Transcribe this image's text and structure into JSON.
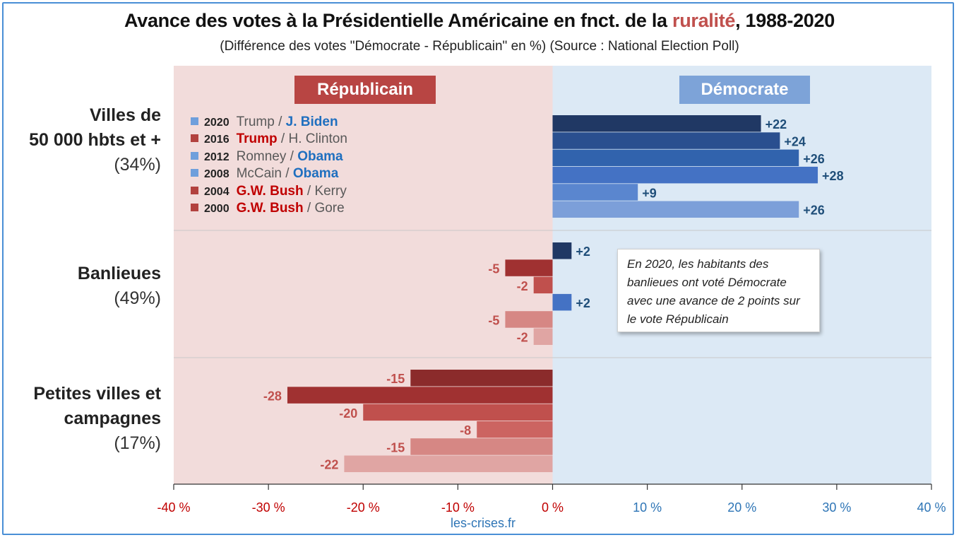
{
  "title": {
    "before": "Avance des votes à la Présidentielle Américaine en fnct. de la ",
    "accent": "ruralité",
    "after": ", 1988-2020"
  },
  "subtitle": "(Différence des votes \"Démocrate - Républicain\" en %) (Source : National Election Poll)",
  "badges": {
    "republican": "Républicain",
    "democrat": "Démocrate"
  },
  "credit": "les-crises.fr",
  "callout": "En 2020, les habitants des banlieues ont voté Démocrate avec une avance de 2 points sur le vote Républicain",
  "legend": [
    {
      "year": "2020",
      "rep": "Trump",
      "dem": "J. Biden",
      "winner": "dem",
      "color": "#6f9fdc"
    },
    {
      "year": "2016",
      "rep": "Trump",
      "dem": "H. Clinton",
      "winner": "rep",
      "color": "#b2423f"
    },
    {
      "year": "2012",
      "rep": "Romney",
      "dem": "Obama",
      "winner": "dem",
      "color": "#6f9fdc"
    },
    {
      "year": "2008",
      "rep": "McCain",
      "dem": "Obama",
      "winner": "dem",
      "color": "#6f9fdc"
    },
    {
      "year": "2004",
      "rep": "G.W. Bush",
      "dem": "Kerry",
      "winner": "rep",
      "color": "#b2423f"
    },
    {
      "year": "2000",
      "rep": "G.W. Bush",
      "dem": "Gore",
      "winner": "rep",
      "color": "#b2423f"
    }
  ],
  "colors": {
    "rep_zone": "#f2dcdb",
    "dem_zone": "#dce9f5",
    "rep_label": "#c0504d",
    "dem_label": "#1f4e79",
    "dem_shades": [
      "#203864",
      "#2a4f8f",
      "#3163ad",
      "#4472c4",
      "#5a86cf",
      "#7c9fd9"
    ],
    "rep_shades": [
      "#8b2b2b",
      "#a03131",
      "#c0504d",
      "#cc6461",
      "#d68784",
      "#e0a5a3"
    ]
  },
  "chart_data": {
    "type": "bar",
    "orientation": "horizontal",
    "xlim": [
      -40,
      40
    ],
    "ticks": [
      "-40 %",
      "-30 %",
      "-20 %",
      "-10 %",
      "0 %",
      "10 %",
      "20 %",
      "30 %",
      "40 %"
    ],
    "tick_values": [
      -40,
      -30,
      -20,
      -10,
      0,
      10,
      20,
      30,
      40
    ],
    "series_years": [
      "2020",
      "2016",
      "2012",
      "2008",
      "2004",
      "2000"
    ],
    "groups": [
      {
        "name": "Villes de\n50 000 hbts et +",
        "share": "(34%)",
        "values": [
          22,
          24,
          26,
          28,
          9,
          26
        ],
        "labels": [
          "+22",
          "+24",
          "+26",
          "+28",
          "+9",
          "+26"
        ]
      },
      {
        "name": "Banlieues",
        "share": "(49%)",
        "values": [
          2,
          -5,
          -2,
          2,
          -5,
          -2
        ],
        "labels": [
          "+2",
          "-5",
          "-2",
          "+2",
          "-5",
          "-2"
        ]
      },
      {
        "name": "Petites villes et\ncampagnes",
        "share": "(17%)",
        "values": [
          -15,
          -28,
          -20,
          -8,
          -15,
          -22
        ],
        "labels": [
          "-15",
          "-28",
          "-20",
          "-8",
          "-15",
          "-22"
        ]
      }
    ]
  }
}
